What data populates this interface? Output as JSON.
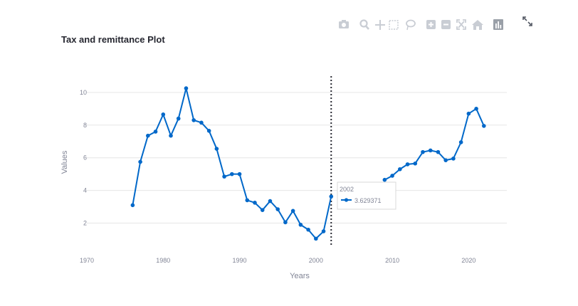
{
  "chart_title": "Tax and remittance Plot",
  "icons": [
    "camera-icon",
    "zoom-icon",
    "pan-icon",
    "box-select-icon",
    "lasso-icon",
    "zoom-in-icon",
    "zoom-out-icon",
    "autoscale-icon",
    "reset-axes-icon",
    "plotly-logo-icon"
  ],
  "expand_icon": "fullscreen-icon",
  "colors": {
    "line": "#0068c9",
    "grid": "#e6e6e6",
    "axis_text": "#808495",
    "hover_line": "#262730",
    "modebar": "#c9cdd4"
  },
  "chart_data": {
    "type": "line",
    "title": "Tax and remittance Plot",
    "xlabel": "Years",
    "ylabel": "Values",
    "xlim": [
      1970,
      2025
    ],
    "ylim": [
      0.5,
      11.3
    ],
    "x_ticks": [
      1970,
      1980,
      1990,
      2000,
      2010,
      2020
    ],
    "y_ticks": [
      2,
      4,
      6,
      8,
      10
    ],
    "grid": "horizontal",
    "series": [
      {
        "name": "",
        "points": [
          [
            1976,
            3.1
          ],
          [
            1977,
            5.75
          ],
          [
            1978,
            7.35
          ],
          [
            1979,
            7.6
          ],
          [
            1980,
            8.65
          ],
          [
            1981,
            7.35
          ],
          [
            1982,
            8.4
          ],
          [
            1983,
            10.25
          ],
          [
            1984,
            8.3
          ],
          [
            1985,
            8.15
          ],
          [
            1986,
            7.65
          ],
          [
            1987,
            6.55
          ],
          [
            1988,
            4.85
          ],
          [
            1989,
            5.0
          ],
          [
            1990,
            5.0
          ],
          [
            1991,
            3.4
          ],
          [
            1992,
            3.25
          ],
          [
            1993,
            2.8
          ],
          [
            1994,
            3.35
          ],
          [
            1995,
            2.85
          ],
          [
            1996,
            2.05
          ],
          [
            1997,
            2.75
          ],
          [
            1998,
            1.9
          ],
          [
            1999,
            1.6
          ],
          [
            2000,
            1.05
          ],
          [
            2001,
            1.5
          ],
          [
            2002,
            3.629371
          ],
          [
            2003,
            null
          ],
          [
            2004,
            null
          ],
          [
            2005,
            null
          ],
          [
            2006,
            null
          ],
          [
            2007,
            null
          ],
          [
            2008,
            null
          ],
          [
            2009,
            4.65
          ],
          [
            2010,
            4.9
          ],
          [
            2011,
            5.3
          ],
          [
            2012,
            5.6
          ],
          [
            2013,
            5.65
          ],
          [
            2014,
            6.35
          ],
          [
            2015,
            6.45
          ],
          [
            2016,
            6.35
          ],
          [
            2017,
            5.85
          ],
          [
            2018,
            5.95
          ],
          [
            2019,
            6.95
          ],
          [
            2020,
            8.7
          ],
          [
            2021,
            9.0
          ],
          [
            2022,
            7.95
          ]
        ]
      }
    ],
    "hover": {
      "x_label": "2002",
      "value_label": "3.629371",
      "x": 2002,
      "y": 3.629371
    }
  }
}
